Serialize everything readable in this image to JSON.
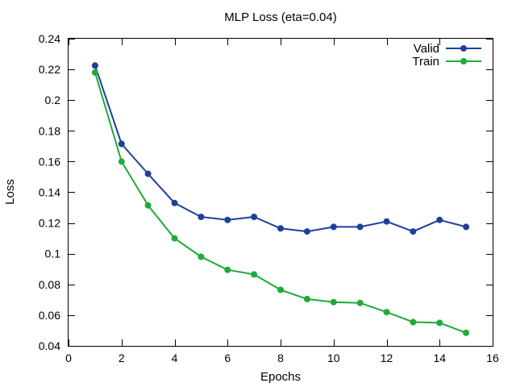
{
  "chart_data": {
    "type": "line",
    "title": "MLP Loss (eta=0.04)",
    "xlabel": "Epochs",
    "ylabel": "Loss",
    "xlim": [
      0,
      16
    ],
    "ylim": [
      0.04,
      0.24
    ],
    "xticks": [
      0,
      2,
      4,
      6,
      8,
      10,
      12,
      14,
      16
    ],
    "yticks": [
      0.04,
      0.06,
      0.08,
      0.1,
      0.12,
      0.14,
      0.16,
      0.18,
      0.2,
      0.22,
      0.24
    ],
    "grid": false,
    "legend_position": "top-right",
    "x": [
      1,
      2,
      3,
      4,
      5,
      6,
      7,
      8,
      9,
      10,
      11,
      12,
      13,
      14,
      15
    ],
    "series": [
      {
        "name": "Valid",
        "color": "#1f3f9a",
        "values": [
          0.2225,
          0.1715,
          0.152,
          0.133,
          0.124,
          0.122,
          0.124,
          0.1165,
          0.1145,
          0.1175,
          0.1175,
          0.121,
          0.1145,
          0.122,
          0.1175
        ]
      },
      {
        "name": "Train",
        "color": "#1faa3a",
        "values": [
          0.218,
          0.16,
          0.1315,
          0.11,
          0.098,
          0.0895,
          0.0865,
          0.0765,
          0.0705,
          0.0685,
          0.068,
          0.062,
          0.0555,
          0.055,
          0.0485
        ]
      }
    ]
  }
}
